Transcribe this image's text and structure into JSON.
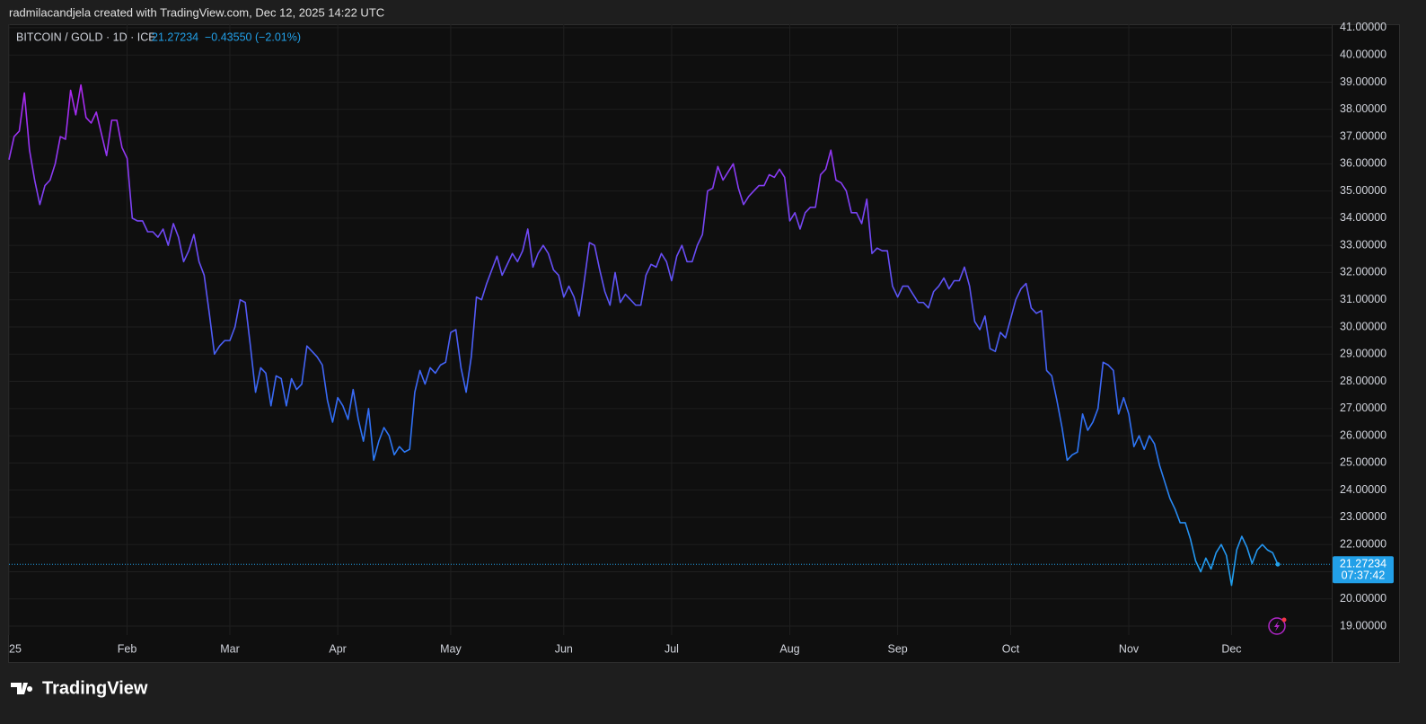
{
  "attribution": "radmilacandjela created with TradingView.com, Dec 12, 2025 14:22 UTC",
  "logo": "TradingView",
  "chart_data": {
    "type": "line",
    "title": "BITCOIN / GOLD · 1D · ICE",
    "change": "−0.43550 (−2.01%)",
    "countdown": "07:37:42",
    "colors": [
      "#b026f0",
      "#6a4cf6",
      "#2f6ff5",
      "#1fa3ee"
    ],
    "price_line_color": "#22a0e8",
    "grid": true,
    "xlim": [
      0,
      257.5
    ],
    "ylim": [
      17.68,
      41.13
    ],
    "xticks": [
      {
        "value": 0,
        "label": "25"
      },
      {
        "value": 23,
        "label": "Feb"
      },
      {
        "value": 43,
        "label": "Mar"
      },
      {
        "value": 64,
        "label": "Apr"
      },
      {
        "value": 86,
        "label": "May"
      },
      {
        "value": 108,
        "label": "Jun"
      },
      {
        "value": 129,
        "label": "Jul"
      },
      {
        "value": 152,
        "label": "Aug"
      },
      {
        "value": 173,
        "label": "Sep"
      },
      {
        "value": 195,
        "label": "Oct"
      },
      {
        "value": 218,
        "label": "Nov"
      },
      {
        "value": 238,
        "label": "Dec"
      }
    ],
    "yticks": [
      {
        "value": 19,
        "label": "19.00000"
      },
      {
        "value": 20,
        "label": "20.00000"
      },
      {
        "value": 21,
        "label": "21.00000"
      },
      {
        "value": 22,
        "label": "22.00000"
      },
      {
        "value": 23,
        "label": "23.00000"
      },
      {
        "value": 24,
        "label": "24.00000"
      },
      {
        "value": 25,
        "label": "25.00000"
      },
      {
        "value": 26,
        "label": "26.00000"
      },
      {
        "value": 27,
        "label": "27.00000"
      },
      {
        "value": 28,
        "label": "28.00000"
      },
      {
        "value": 29,
        "label": "29.00000"
      },
      {
        "value": 30,
        "label": "30.00000"
      },
      {
        "value": 31,
        "label": "31.00000"
      },
      {
        "value": 32,
        "label": "32.00000"
      },
      {
        "value": 33,
        "label": "33.00000"
      },
      {
        "value": 34,
        "label": "34.00000"
      },
      {
        "value": 35,
        "label": "35.00000"
      },
      {
        "value": 36,
        "label": "36.00000"
      },
      {
        "value": 37,
        "label": "37.00000"
      },
      {
        "value": 38,
        "label": "38.00000"
      },
      {
        "value": 39,
        "label": "39.00000"
      },
      {
        "value": 40,
        "label": "40.00000"
      },
      {
        "value": 41,
        "label": "41.00000"
      }
    ],
    "values": [
      36.15,
      37.0,
      37.2,
      38.6,
      36.5,
      35.4,
      34.5,
      35.2,
      35.4,
      36.0,
      37.0,
      36.9,
      38.7,
      37.8,
      38.9,
      37.7,
      37.5,
      37.9,
      37.1,
      36.3,
      37.6,
      37.6,
      36.6,
      36.2,
      34.0,
      33.9,
      33.9,
      33.5,
      33.5,
      33.3,
      33.6,
      33.0,
      33.8,
      33.3,
      32.4,
      32.8,
      33.4,
      32.4,
      31.9,
      30.5,
      29.0,
      29.3,
      29.5,
      29.5,
      30.0,
      31.0,
      30.9,
      29.3,
      27.6,
      28.5,
      28.3,
      27.1,
      28.2,
      28.1,
      27.1,
      28.1,
      27.7,
      27.9,
      29.3,
      29.1,
      28.9,
      28.6,
      27.3,
      26.5,
      27.4,
      27.1,
      26.6,
      27.7,
      26.6,
      25.8,
      27.0,
      25.1,
      25.8,
      26.3,
      26.0,
      25.3,
      25.6,
      25.4,
      25.5,
      27.6,
      28.4,
      27.9,
      28.5,
      28.3,
      28.6,
      28.7,
      29.8,
      29.9,
      28.5,
      27.6,
      28.9,
      31.1,
      31.0,
      31.6,
      32.1,
      32.6,
      31.9,
      32.3,
      32.7,
      32.4,
      32.8,
      33.6,
      32.2,
      32.7,
      33.0,
      32.7,
      32.1,
      31.9,
      31.1,
      31.5,
      31.1,
      30.4,
      31.7,
      33.1,
      33.0,
      32.1,
      31.3,
      30.8,
      32.0,
      30.9,
      31.2,
      31.0,
      30.8,
      30.8,
      31.9,
      32.3,
      32.2,
      32.7,
      32.4,
      31.7,
      32.6,
      33.0,
      32.4,
      32.4,
      33.0,
      33.4,
      35.0,
      35.1,
      35.9,
      35.4,
      35.7,
      36.0,
      35.1,
      34.5,
      34.8,
      35.0,
      35.2,
      35.2,
      35.6,
      35.5,
      35.8,
      35.5,
      33.9,
      34.2,
      33.6,
      34.2,
      34.4,
      34.4,
      35.6,
      35.8,
      36.5,
      35.4,
      35.3,
      35.0,
      34.2,
      34.2,
      33.8,
      34.7,
      32.7,
      32.9,
      32.8,
      32.8,
      31.5,
      31.1,
      31.5,
      31.5,
      31.2,
      30.9,
      30.9,
      30.7,
      31.3,
      31.5,
      31.8,
      31.4,
      31.7,
      31.7,
      32.2,
      31.5,
      30.2,
      29.9,
      30.4,
      29.2,
      29.1,
      29.8,
      29.6,
      30.3,
      31.0,
      31.4,
      31.6,
      30.7,
      30.5,
      30.6,
      28.4,
      28.2,
      27.3,
      26.3,
      25.1,
      25.3,
      25.4,
      26.8,
      26.2,
      26.5,
      27.0,
      28.7,
      28.6,
      28.4,
      26.8,
      27.4,
      26.8,
      25.6,
      26.0,
      25.5,
      26.0,
      25.7,
      24.9,
      24.3,
      23.7,
      23.3,
      22.8,
      22.8,
      22.2,
      21.4,
      21.0,
      21.5,
      21.1,
      21.7,
      22.0,
      21.6,
      20.5,
      21.8,
      22.3,
      21.9,
      21.3,
      21.8,
      22.0,
      21.8,
      21.7,
      21.27234
    ]
  }
}
